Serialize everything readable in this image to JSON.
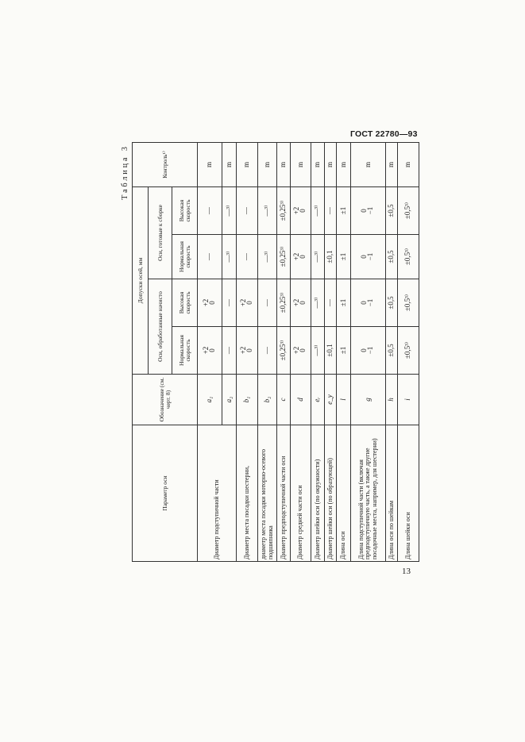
{
  "header": {
    "standard": "ГОСТ 22780—93",
    "page_number": "13",
    "table_caption": "Таблица 3"
  },
  "columns": {
    "parameter": "Параметр оси",
    "designation": "Обозначение (см. черт. 8)",
    "tolerances": "Допуски осей, мм",
    "group_machined": "Оси, обработанные начисто",
    "group_assembled": "Оси, готовые к сборке",
    "normal_speed": "Нормальная скорость",
    "high_speed": "Высокая скорость",
    "control": "Контроль¹⁾"
  },
  "rows": [
    {
      "id": "a1",
      "param": "Диаметр подступичной части",
      "designation": "a₁",
      "values": [
        "+2|0",
        "+2|0",
        "—",
        "—"
      ],
      "control": "m"
    },
    {
      "id": "a2",
      "param": "",
      "designation": "a₂",
      "values": [
        "—",
        "—",
        "—³⁾",
        "—³⁾"
      ],
      "control": "m"
    },
    {
      "id": "b1",
      "param": "Диаметр места посадки шестерни,",
      "designation": "b₁",
      "values": [
        "+2|0",
        "+2|0",
        "—",
        "—"
      ],
      "control": "m"
    },
    {
      "id": "b2",
      "param": "диаметр места посадки моторно-осевого подшипника",
      "designation": "b₂",
      "values": [
        "—",
        "—",
        "—³⁾",
        "—³⁾"
      ],
      "control": "m"
    },
    {
      "id": "c",
      "param": "Диаметр предподступичной части оси",
      "designation": "c",
      "values": [
        "±0,25³⁾",
        "±0,25³⁾",
        "±0,25³⁾",
        "±0,25³⁾"
      ],
      "control": "m"
    },
    {
      "id": "d",
      "param": "Диаметр средней части оси",
      "designation": "d",
      "values": [
        "+2|0",
        "+2|0",
        "+2|0",
        "+2|0"
      ],
      "control": "m"
    },
    {
      "id": "er",
      "param": "Диаметр шейки оси (по окружности)",
      "designation": "eᵣ",
      "values": [
        "—³⁾",
        "—³⁾",
        "—³⁾",
        "—³⁾"
      ],
      "control": "m"
    },
    {
      "id": "ey",
      "param": "Диаметр шейки оси (по образующей)",
      "designation": "e_y",
      "values": [
        "±0,1",
        "—",
        "±0,1",
        "—"
      ],
      "control": "m"
    },
    {
      "id": "l",
      "param": "Длина оси",
      "designation": "l",
      "values": [
        "±1",
        "±1",
        "±1",
        "±1"
      ],
      "control": "m"
    },
    {
      "id": "g",
      "param": "Длина подступичной части (включая предподступичную часть, а также другие посадочные места, например, для шестерни)",
      "designation": "g",
      "values": [
        "0|−1",
        "0|−1",
        "0|−1",
        "0|−1"
      ],
      "control": "m"
    },
    {
      "id": "h",
      "param": "Длина оси по шейкам",
      "designation": "h",
      "values": [
        "±0,5",
        "±0,5",
        "±0,5",
        "±0,5"
      ],
      "control": "m"
    },
    {
      "id": "i",
      "param": "Длина шейки оси",
      "designation": "i",
      "values": [
        "±0,5³⁾",
        "±0,5³⁾",
        "±0,5³⁾",
        "±0,5³⁾"
      ],
      "control": "m"
    }
  ]
}
